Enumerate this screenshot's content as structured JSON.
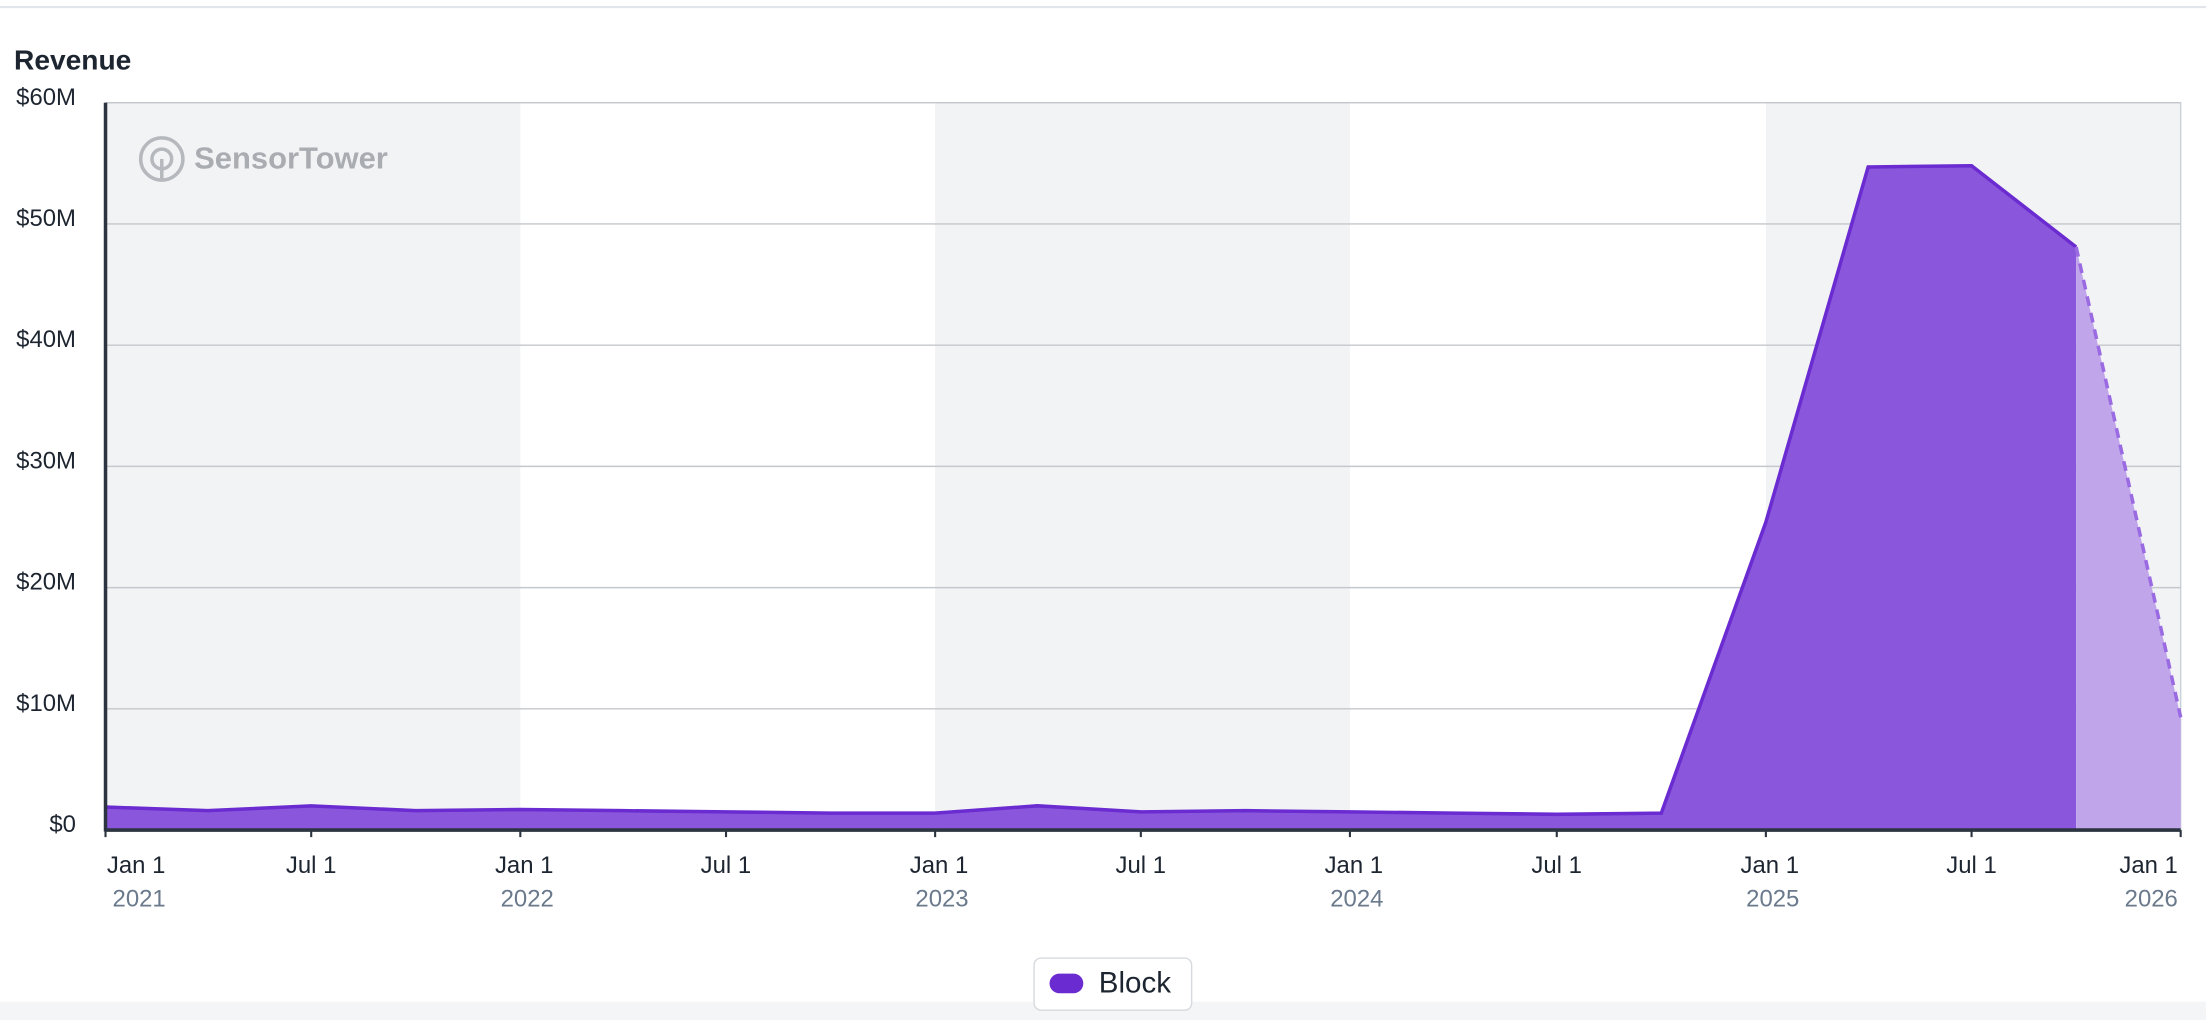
{
  "chart_data": {
    "type": "area",
    "title": "Revenue",
    "watermark": "SensorTower",
    "x": [
      "2021-01-01",
      "2021-04-01",
      "2021-07-01",
      "2021-10-01",
      "2022-01-01",
      "2022-04-01",
      "2022-07-01",
      "2022-10-01",
      "2023-01-01",
      "2023-04-01",
      "2023-07-01",
      "2023-10-01",
      "2024-01-01",
      "2024-04-01",
      "2024-07-01",
      "2024-10-01",
      "2025-01-01",
      "2025-04-01",
      "2025-07-01",
      "2025-10-01",
      "2026-01-01"
    ],
    "series": [
      {
        "name": "Block",
        "color": "#6a2bd0",
        "values": [
          1.9,
          1.6,
          2.0,
          1.6,
          1.7,
          1.6,
          1.5,
          1.4,
          1.4,
          2.0,
          1.5,
          1.6,
          1.5,
          1.4,
          1.3,
          1.4,
          25.4,
          54.7,
          54.8,
          48.1,
          9.3
        ]
      }
    ],
    "xlim": [
      "2021-01-01",
      "2026-01-01"
    ],
    "xticks": [
      {
        "value": "2021-01-01",
        "label": "Jan 1",
        "year": "2021"
      },
      {
        "value": "2021-07-01",
        "label": "Jul 1"
      },
      {
        "value": "2022-01-01",
        "label": "Jan 1",
        "year": "2022"
      },
      {
        "value": "2022-07-01",
        "label": "Jul 1"
      },
      {
        "value": "2023-01-01",
        "label": "Jan 1",
        "year": "2023"
      },
      {
        "value": "2023-07-01",
        "label": "Jul 1"
      },
      {
        "value": "2024-01-01",
        "label": "Jan 1",
        "year": "2024"
      },
      {
        "value": "2024-07-01",
        "label": "Jul 1"
      },
      {
        "value": "2025-01-01",
        "label": "Jan 1",
        "year": "2025"
      },
      {
        "value": "2025-07-01",
        "label": "Jul 1"
      },
      {
        "value": "2026-01-01",
        "label": "Jan 1",
        "year": "2026"
      }
    ],
    "ylim": [
      0,
      60
    ],
    "yticks": [
      {
        "value": 0,
        "label": "$0"
      },
      {
        "value": 10,
        "label": "$10M"
      },
      {
        "value": 20,
        "label": "$20M"
      },
      {
        "value": 30,
        "label": "$30M"
      },
      {
        "value": 40,
        "label": "$40M"
      },
      {
        "value": 50,
        "label": "$50M"
      },
      {
        "value": 60,
        "label": "$60M"
      }
    ],
    "grid": true,
    "legend": "bottom"
  }
}
